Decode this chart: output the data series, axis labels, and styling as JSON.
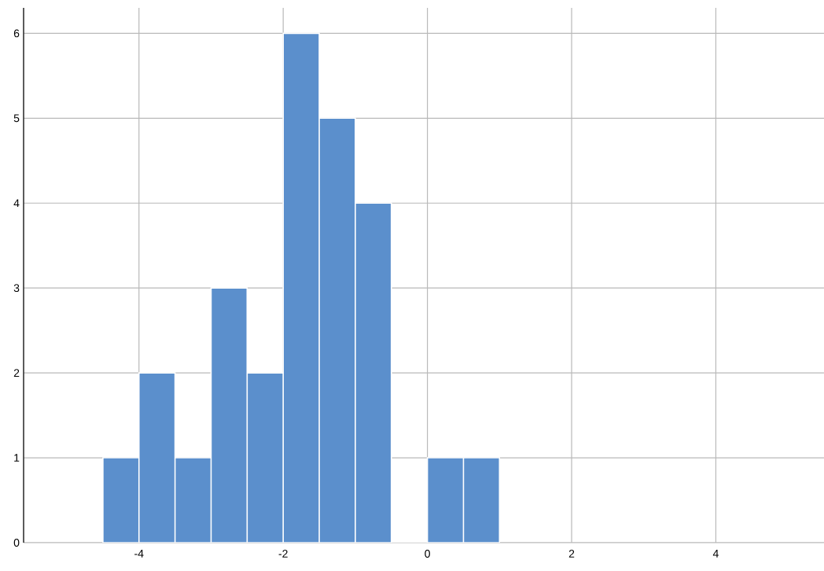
{
  "chart_data": {
    "type": "histogram",
    "bins": [
      -4.5,
      -4,
      -3.5,
      -3,
      -2.5,
      -2,
      -1.5,
      -1,
      -0.5,
      0,
      0.5,
      1
    ],
    "values": [
      1,
      2,
      1,
      3,
      2,
      6,
      5,
      4,
      0,
      1,
      1
    ],
    "color": "#5b8fcc",
    "xlim": [
      -5.6,
      5.5
    ],
    "ylim": [
      0,
      6.3
    ],
    "xticks": [
      -4,
      -2,
      0,
      2,
      4
    ],
    "yticks": [
      0,
      1,
      2,
      3,
      4,
      5,
      6
    ],
    "grid": true
  }
}
